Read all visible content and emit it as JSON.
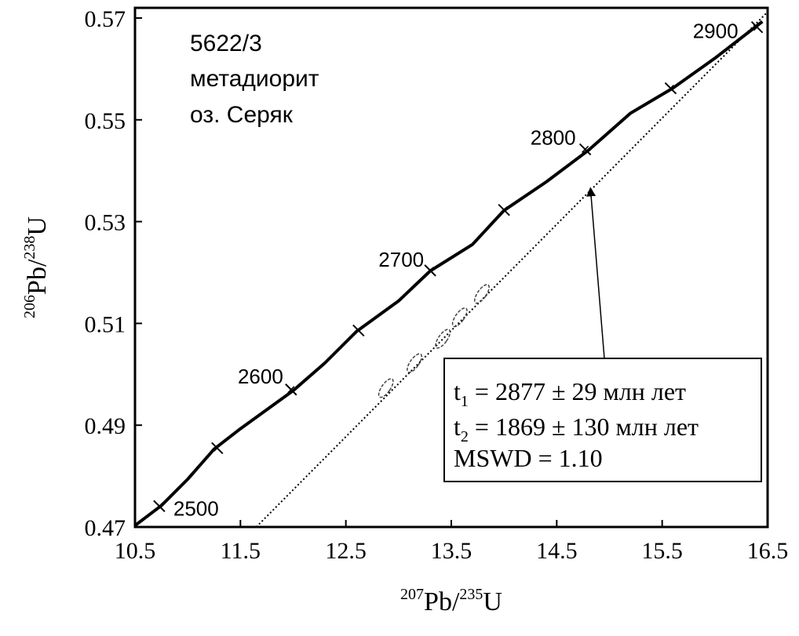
{
  "chart_data": {
    "type": "scatter",
    "title": "",
    "xlabel": {
      "sup1": "207",
      "base1": "Pb/",
      "sup2": "235",
      "base2": "U"
    },
    "ylabel": {
      "sup1": "206",
      "base1": "Pb/",
      "sup2": "238",
      "base2": "U"
    },
    "xlim": [
      10.5,
      16.5
    ],
    "ylim": [
      0.47,
      0.572
    ],
    "x_ticks": [
      10.5,
      11.5,
      12.5,
      13.5,
      14.5,
      15.5,
      16.5
    ],
    "x_tick_labels": [
      "10.5",
      "11.5",
      "12.5",
      "13.5",
      "14.5",
      "15.5",
      "16.5"
    ],
    "y_ticks": [
      0.47,
      0.49,
      0.51,
      0.53,
      0.55,
      0.57
    ],
    "y_tick_labels": [
      "0.47",
      "0.49",
      "0.51",
      "0.53",
      "0.55",
      "0.57"
    ],
    "grid": false,
    "sample_label": [
      "5622/3",
      "метадиорит",
      "оз. Серяк"
    ],
    "concordia": {
      "points": [
        [
          10.5,
          0.4703
        ],
        [
          10.75,
          0.4742
        ],
        [
          11.0,
          0.4794
        ],
        [
          11.25,
          0.4853
        ],
        [
          11.5,
          0.4893
        ],
        [
          12.0,
          0.4968
        ],
        [
          12.3,
          0.5022
        ],
        [
          12.6,
          0.5084
        ],
        [
          13.0,
          0.5144
        ],
        [
          13.3,
          0.5203
        ],
        [
          13.7,
          0.5255
        ],
        [
          14.0,
          0.5322
        ],
        [
          14.4,
          0.5378
        ],
        [
          14.8,
          0.544
        ],
        [
          15.2,
          0.5513
        ],
        [
          15.6,
          0.5562
        ],
        [
          16.0,
          0.5621
        ],
        [
          16.45,
          0.5693
        ]
      ],
      "age_ticks": [
        {
          "x": 10.73,
          "y": 0.4741,
          "age": "2500"
        },
        {
          "x": 11.28,
          "y": 0.4855,
          "age": ""
        },
        {
          "x": 11.98,
          "y": 0.497,
          "age": "2600"
        },
        {
          "x": 12.62,
          "y": 0.5086,
          "age": ""
        },
        {
          "x": 13.3,
          "y": 0.5204,
          "age": "2700"
        },
        {
          "x": 14.0,
          "y": 0.5323,
          "age": ""
        },
        {
          "x": 14.77,
          "y": 0.5442,
          "age": "2800"
        },
        {
          "x": 15.58,
          "y": 0.5562,
          "age": ""
        },
        {
          "x": 16.4,
          "y": 0.5682,
          "age": "2900"
        }
      ]
    },
    "discordia": {
      "x": [
        11.65,
        16.5
      ],
      "y": [
        0.47,
        0.5712
      ]
    },
    "data_ellipses": [
      {
        "x": 12.88,
        "y": 0.4973
      },
      {
        "x": 13.15,
        "y": 0.5022
      },
      {
        "x": 13.42,
        "y": 0.507
      },
      {
        "x": 13.58,
        "y": 0.5112
      },
      {
        "x": 13.79,
        "y": 0.5158
      }
    ],
    "result_box": {
      "t1_label": {
        "base": "t",
        "sub": "1",
        "text": " = 2877 ± 29 млн лет"
      },
      "t2_label": {
        "base": "t",
        "sub": "2",
        "text": " = 1869 ± 130 млн лет"
      },
      "mswd": "MSWD = 1.10"
    },
    "arrow_target": {
      "x": 14.82,
      "y": 0.5365
    }
  }
}
